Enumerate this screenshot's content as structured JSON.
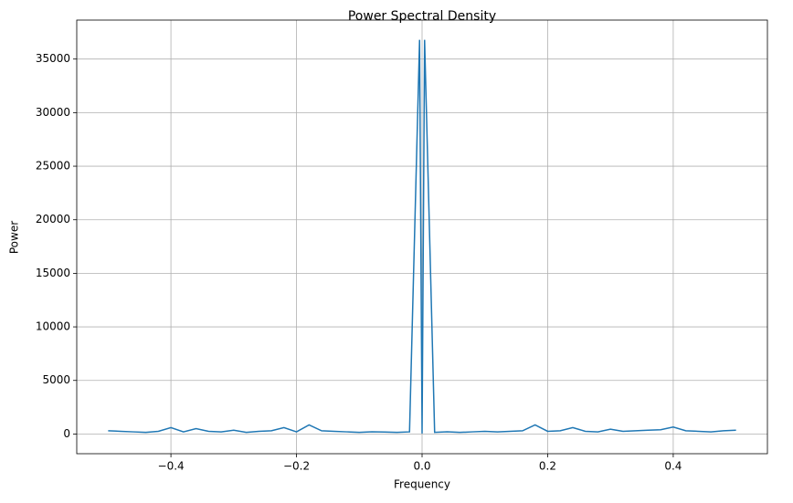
{
  "chart_data": {
    "type": "line",
    "title": "Power Spectral Density",
    "x_label": "Frequency",
    "y_label": "Power",
    "x": [
      -0.5,
      -0.48,
      -0.46,
      -0.44,
      -0.42,
      -0.4,
      -0.38,
      -0.36,
      -0.34,
      -0.32,
      -0.3,
      -0.28,
      -0.26,
      -0.24,
      -0.22,
      -0.2,
      -0.18,
      -0.16,
      -0.14,
      -0.12,
      -0.1,
      -0.08,
      -0.06,
      -0.04,
      -0.02,
      -0.004,
      0,
      0.004,
      0.02,
      0.04,
      0.06,
      0.08,
      0.1,
      0.12,
      0.14,
      0.16,
      0.18,
      0.2,
      0.22,
      0.24,
      0.26,
      0.28,
      0.3,
      0.32,
      0.34,
      0.36,
      0.38,
      0.4,
      0.42,
      0.44,
      0.46,
      0.48,
      0.5
    ],
    "series": [
      {
        "color": "#1f77b4",
        "values": [
          300,
          250,
          200,
          150,
          250,
          600,
          200,
          500,
          250,
          200,
          350,
          150,
          250,
          300,
          600,
          200,
          850,
          300,
          250,
          200,
          150,
          200,
          180,
          150,
          200,
          36800,
          50,
          36800,
          150,
          200,
          150,
          200,
          250,
          200,
          250,
          300,
          850,
          250,
          300,
          600,
          250,
          200,
          450,
          250,
          300,
          350,
          400,
          650,
          300,
          250,
          200,
          300,
          350
        ]
      }
    ],
    "xlim": [
      -0.55,
      0.55
    ],
    "ylim": [
      -1840,
      38640
    ],
    "xticks": [
      {
        "value": -0.4,
        "label": "−0.4"
      },
      {
        "value": -0.2,
        "label": "−0.2"
      },
      {
        "value": 0,
        "label": "0.0"
      },
      0.2,
      0.4
    ],
    "yticks": [
      0,
      5000,
      10000,
      15000,
      20000,
      25000,
      30000,
      35000
    ],
    "grid": true
  }
}
